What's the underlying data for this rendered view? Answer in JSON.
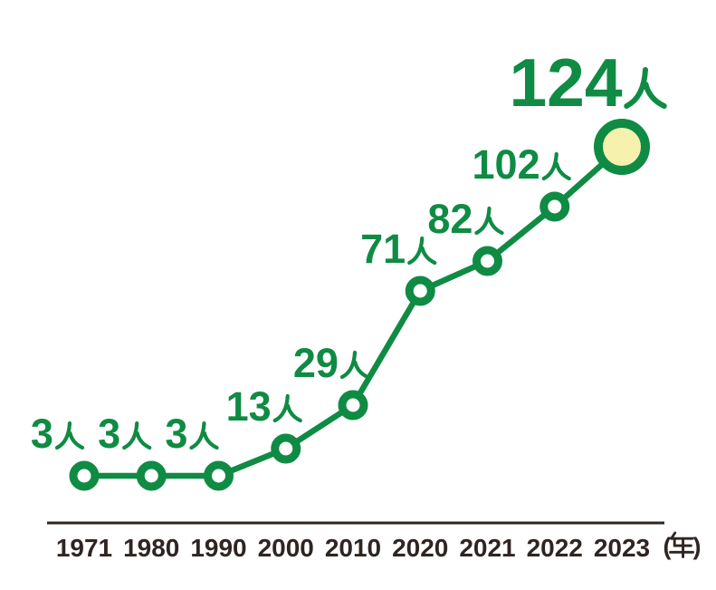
{
  "chart_data": {
    "type": "line",
    "title": "",
    "categories": [
      "1971",
      "1980",
      "1990",
      "2000",
      "2010",
      "2020",
      "2021",
      "2022",
      "2023"
    ],
    "values": [
      3,
      3,
      3,
      13,
      29,
      71,
      82,
      102,
      124
    ],
    "unit": "人",
    "point_labels": [
      "3人",
      "3人",
      "3人",
      "13人",
      "29人",
      "71人",
      "82人",
      "102人",
      "124人"
    ],
    "x_axis_suffix": "（年）",
    "xlabel": "",
    "ylabel": "",
    "ylim": [
      0,
      130
    ],
    "grid": false,
    "legend": "none",
    "highlight_index": 8,
    "colors": {
      "line": "#0f8b44",
      "label": "#0f8b44",
      "point_fill": "#ffffff",
      "highlight_fill": "#f6f2ad",
      "axis": "#2e2522",
      "background": "#ffffff"
    }
  }
}
